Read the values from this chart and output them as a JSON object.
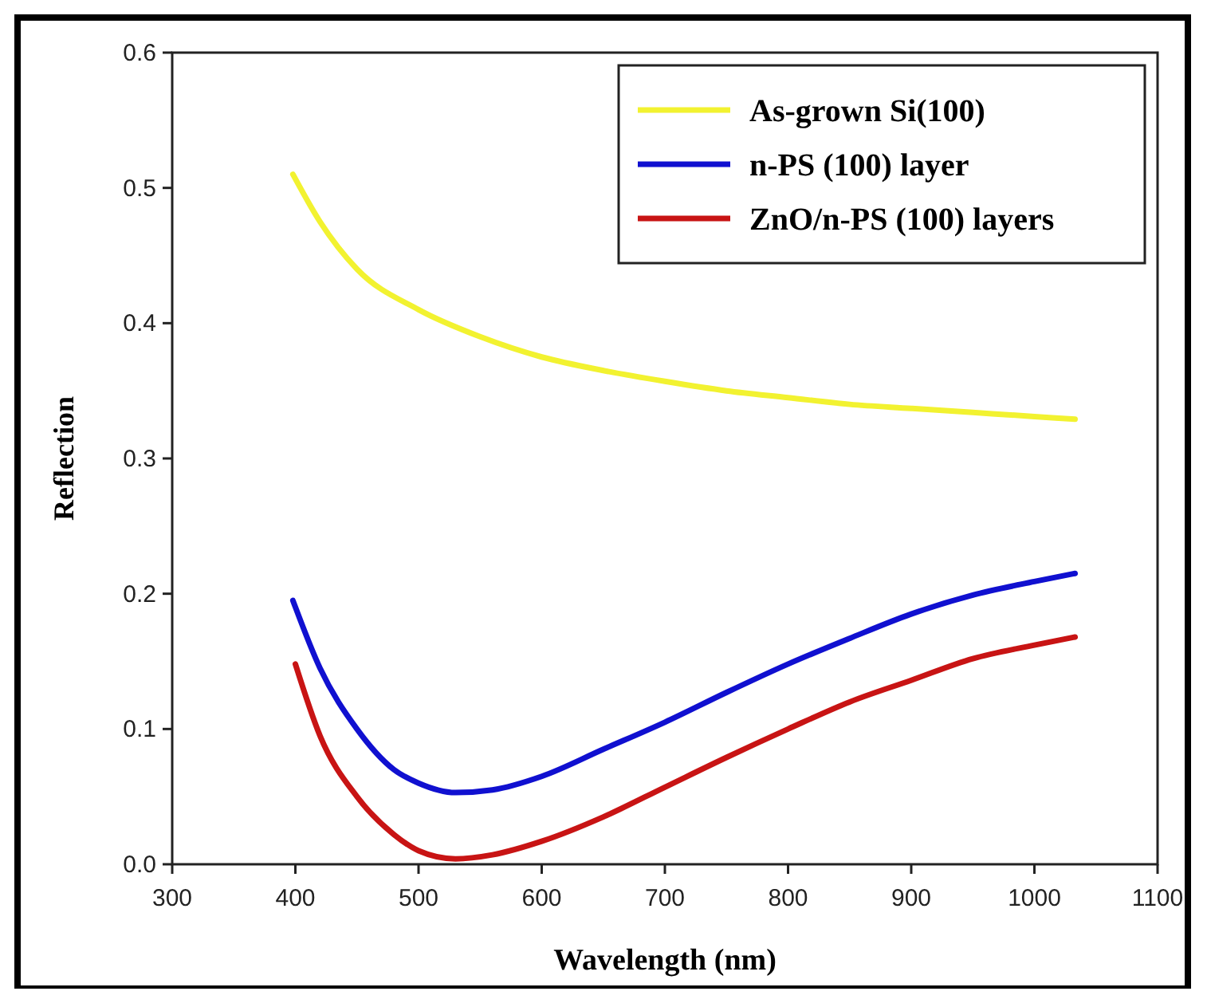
{
  "chart_data": {
    "type": "line",
    "xlabel": "Wavelength (nm)",
    "ylabel": "Reflection",
    "xlim": [
      300,
      1100
    ],
    "xticks": [
      300,
      400,
      500,
      600,
      700,
      800,
      900,
      1000,
      1100
    ],
    "ylim": [
      0,
      0.6
    ],
    "yticks": [
      "0.0",
      0.1,
      0.2,
      0.3,
      0.4,
      0.5,
      0.6
    ],
    "legend": "top right",
    "grid": false,
    "marker": "none",
    "line_style": "solid",
    "series": [
      {
        "name": "As-grown Si(100)",
        "color": "#f2f230",
        "x": [
          398,
          420,
          450,
          500,
          550,
          600,
          650,
          700,
          750,
          800,
          850,
          900,
          950,
          1000,
          1033
        ],
        "values": [
          0.51,
          0.475,
          0.44,
          0.41,
          0.39,
          0.375,
          0.365,
          0.357,
          0.35,
          0.345,
          0.34,
          0.337,
          0.334,
          0.331,
          0.329
        ]
      },
      {
        "name": "n-PS (100) layer",
        "color": "#1010d0",
        "x": [
          398,
          420,
          450,
          480,
          500,
          530,
          560,
          600,
          650,
          700,
          750,
          800,
          850,
          900,
          950,
          1000,
          1033
        ],
        "values": [
          0.195,
          0.145,
          0.1,
          0.07,
          0.06,
          0.053,
          0.055,
          0.065,
          0.085,
          0.105,
          0.127,
          0.148,
          0.167,
          0.185,
          0.199,
          0.209,
          0.215
        ]
      },
      {
        "name": "ZnO/n-PS (100) layers",
        "color": "#c81414",
        "x": [
          400,
          420,
          450,
          480,
          500,
          530,
          560,
          600,
          650,
          700,
          750,
          800,
          850,
          900,
          950,
          1000,
          1033
        ],
        "values": [
          0.148,
          0.095,
          0.05,
          0.022,
          0.01,
          0.004,
          0.007,
          0.017,
          0.035,
          0.057,
          0.079,
          0.1,
          0.12,
          0.136,
          0.152,
          0.162,
          0.168
        ]
      }
    ]
  }
}
